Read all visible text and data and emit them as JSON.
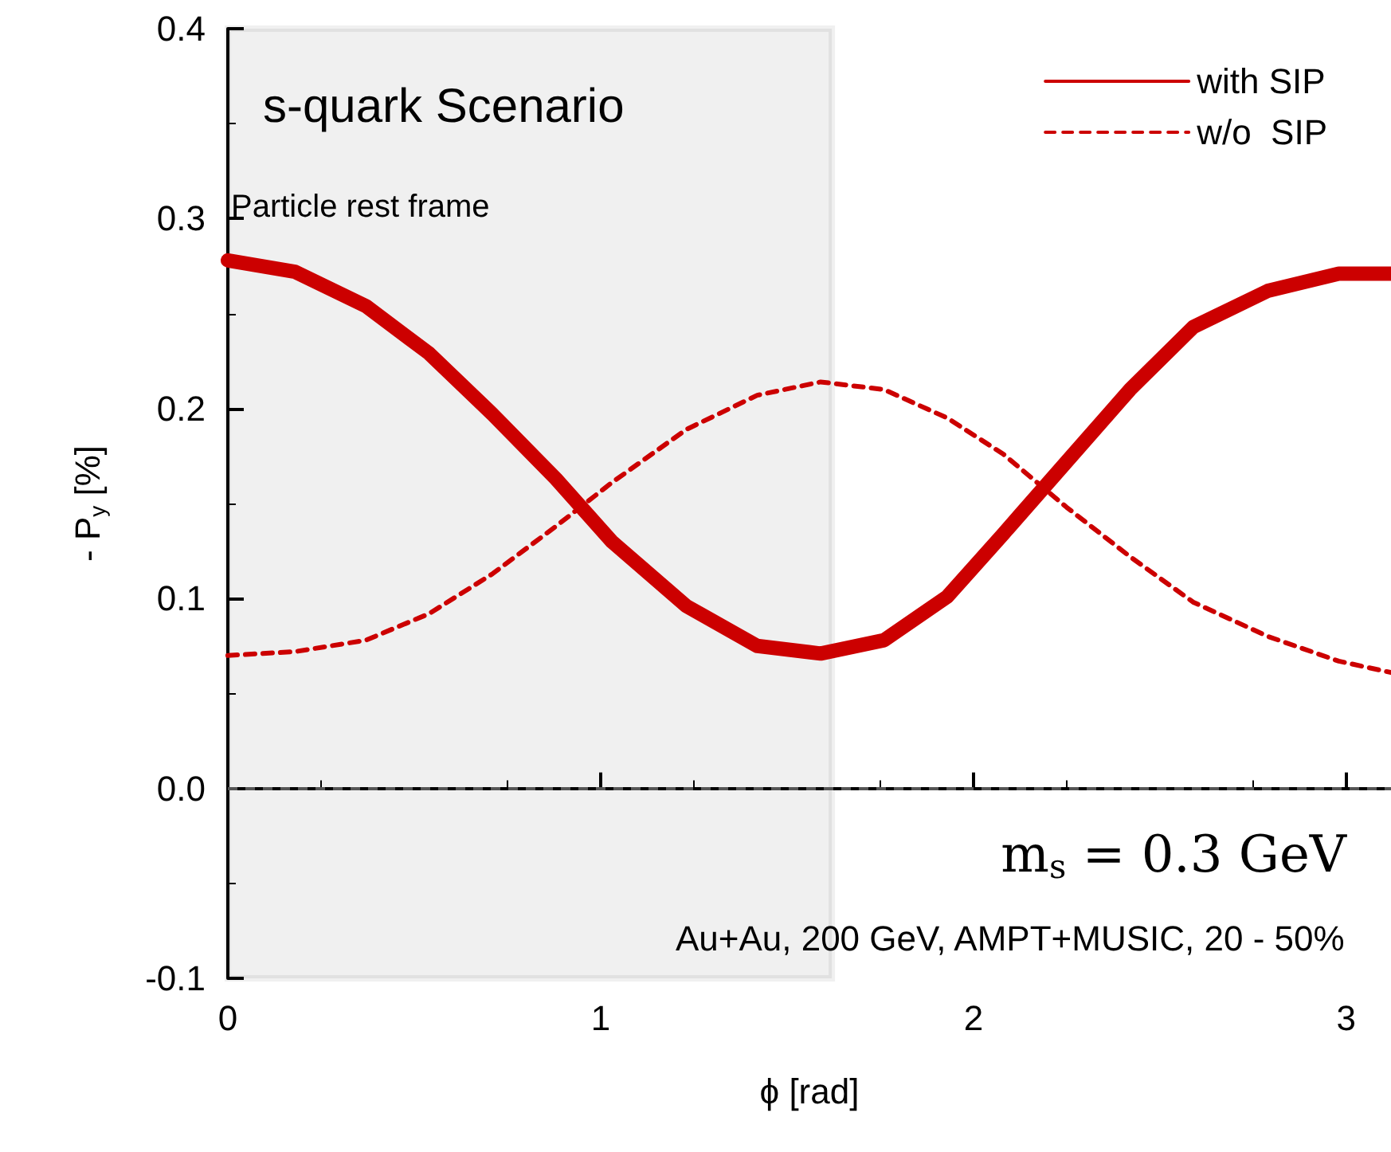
{
  "chart_data": {
    "type": "line",
    "xlabel": "ϕ [rad]",
    "ylabel": "- P$_{y}$ [%]",
    "xlim": [
      0,
      3.12
    ],
    "xticks": [
      0,
      1,
      2,
      3
    ],
    "ylim": [
      -0.1,
      0.4
    ],
    "yticks": [
      -0.1,
      {
        "value": 0,
        "label": "0.0"
      },
      0.1,
      0.2,
      0.3,
      0.4
    ],
    "x": [
      0,
      0.18,
      0.37,
      0.54,
      0.71,
      0.88,
      1.03,
      1.23,
      1.42,
      1.59,
      1.76,
      1.93,
      2.08,
      2.25,
      2.42,
      2.59,
      2.79,
      2.98,
      3.12
    ],
    "series": [
      {
        "name": "with SIP",
        "color": "#cc0000",
        "line_style": "solid",
        "values": [
          0.278,
          0.272,
          0.254,
          0.229,
          0.197,
          0.163,
          0.13,
          0.096,
          0.075,
          0.071,
          0.078,
          0.101,
          0.134,
          0.172,
          0.21,
          0.243,
          0.262,
          0.271,
          0.271
        ]
      },
      {
        "name": "w/o  SIP",
        "color": "#cc0000",
        "line_style": "dashed",
        "values": [
          0.07,
          0.072,
          0.078,
          0.092,
          0.113,
          0.138,
          0.161,
          0.189,
          0.207,
          0.214,
          0.21,
          0.195,
          0.176,
          0.148,
          0.122,
          0.098,
          0.08,
          0.067,
          0.061
        ]
      }
    ],
    "ref_lines": [
      {
        "axis": "y",
        "value": 0,
        "color": "#555555",
        "line_style": "dashed"
      }
    ],
    "bands": [
      {
        "axis": "x",
        "from": 0,
        "to": 1.62,
        "label": "Particle rest frame",
        "color": "#000000"
      }
    ],
    "annotations": [
      "s-quark Scenario",
      "m$_{s}$ = 0.3 GeV",
      "Au+Au, 200 GeV, AMPT+MUSIC, 20 - 50%"
    ],
    "legend": "top right",
    "grid": false,
    "marker": "none"
  }
}
